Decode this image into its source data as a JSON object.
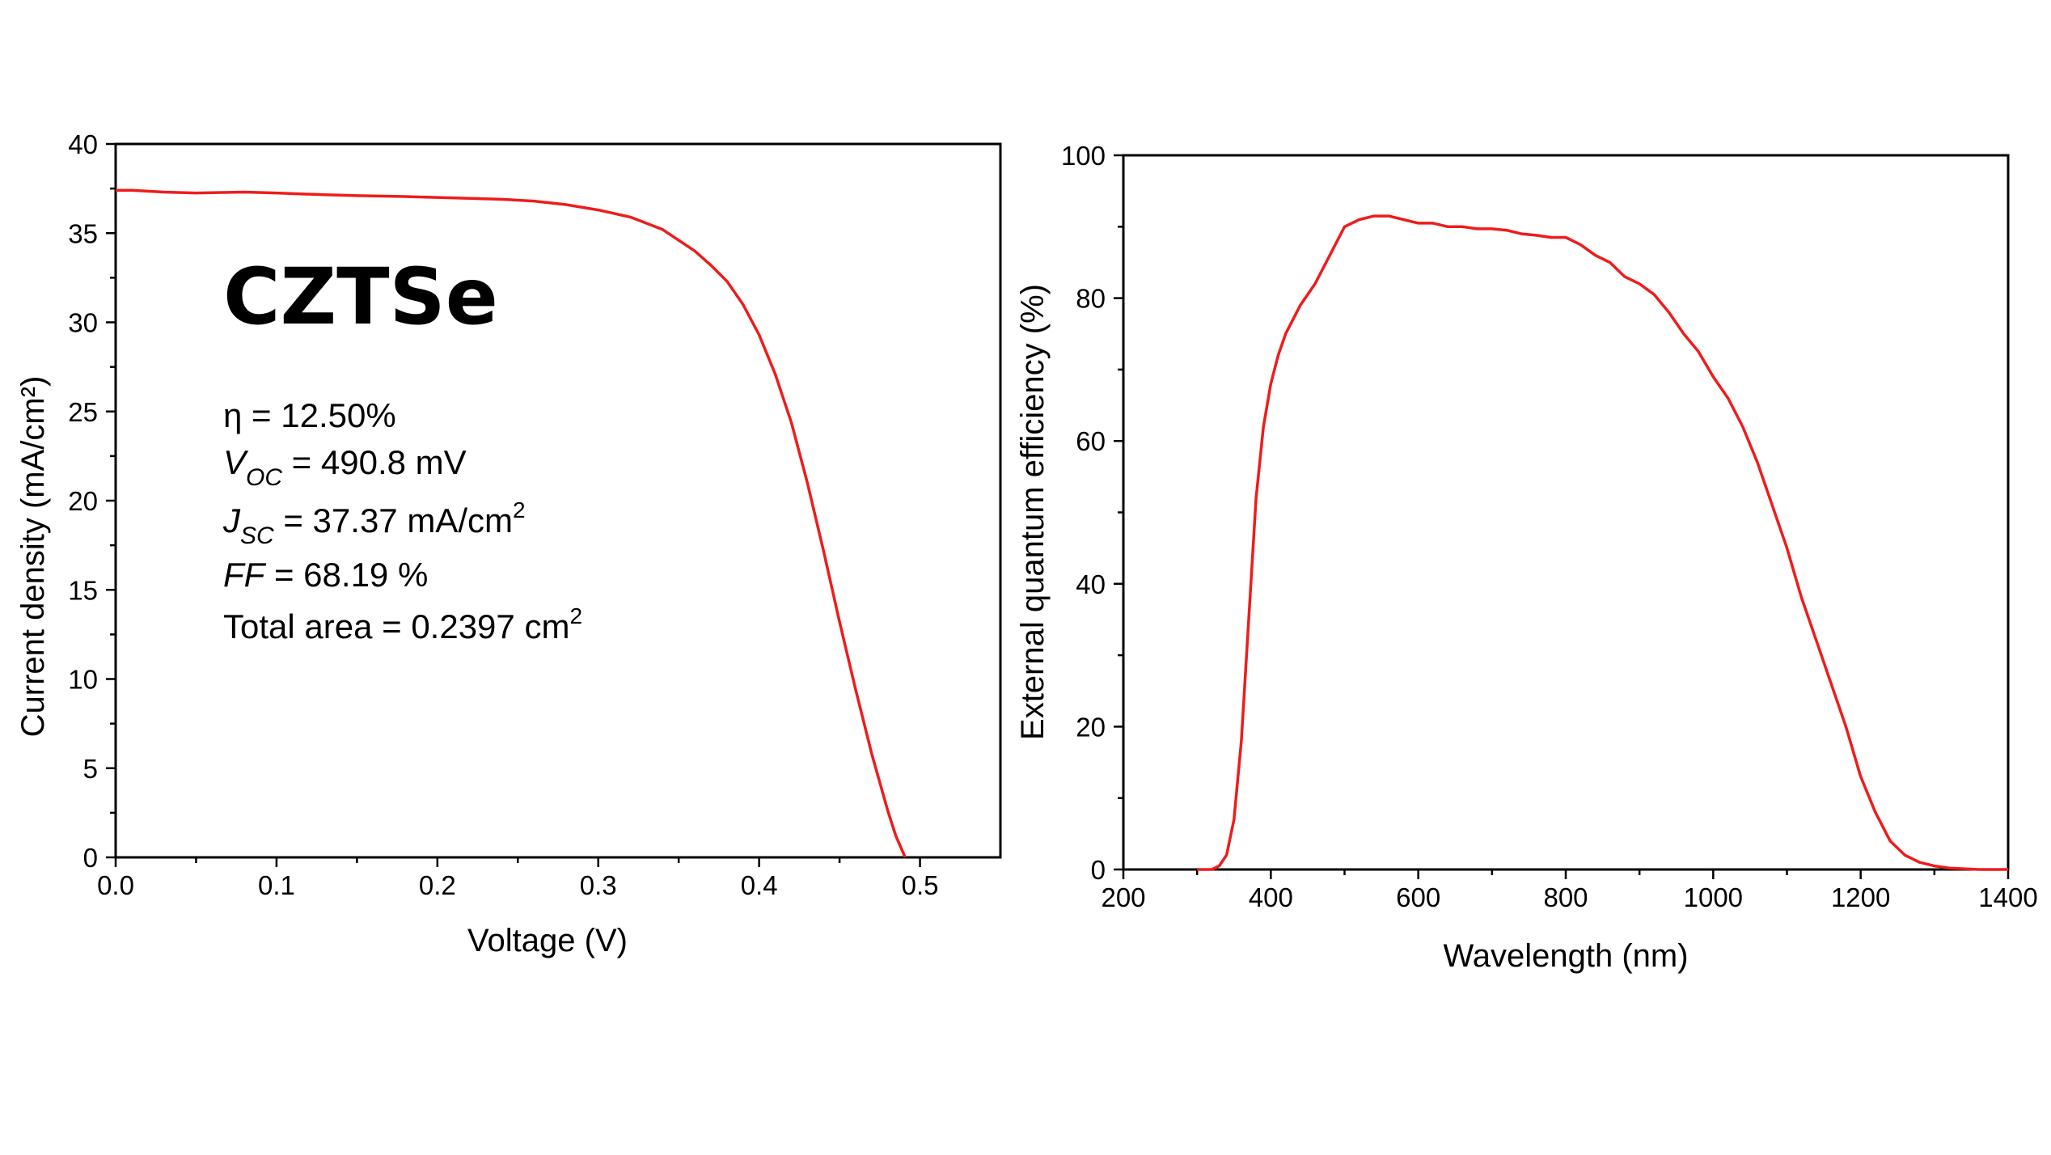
{
  "chart_data": [
    {
      "type": "line",
      "title": "CZTSe",
      "xlabel": "Voltage (V)",
      "ylabel": "Current density (mA/cm²)",
      "xlim": [
        0,
        0.55
      ],
      "ylim": [
        0,
        40
      ],
      "xticks": [
        "0.0",
        "0.1",
        "0.2",
        "0.3",
        "0.4",
        "0.5"
      ],
      "xtick_values": [
        0,
        0.1,
        0.2,
        0.3,
        0.4,
        0.5
      ],
      "yticks": [
        "0",
        "5",
        "10",
        "15",
        "20",
        "25",
        "30",
        "35",
        "40"
      ],
      "ytick_values": [
        0,
        5,
        10,
        15,
        20,
        25,
        30,
        35,
        40
      ],
      "grid": false,
      "series": [
        {
          "color": "#ee1c1c",
          "x": [
            0.0,
            0.01,
            0.03,
            0.05,
            0.08,
            0.1,
            0.13,
            0.15,
            0.18,
            0.2,
            0.22,
            0.24,
            0.26,
            0.28,
            0.3,
            0.32,
            0.34,
            0.35,
            0.36,
            0.37,
            0.38,
            0.39,
            0.4,
            0.41,
            0.42,
            0.43,
            0.44,
            0.45,
            0.46,
            0.47,
            0.48,
            0.485,
            0.4908
          ],
          "y": [
            37.4,
            37.4,
            37.3,
            37.25,
            37.3,
            37.25,
            37.15,
            37.1,
            37.05,
            37.0,
            36.95,
            36.9,
            36.8,
            36.6,
            36.3,
            35.9,
            35.2,
            34.6,
            34.0,
            33.2,
            32.3,
            31.0,
            29.3,
            27.1,
            24.4,
            21.0,
            17.2,
            13.2,
            9.4,
            5.8,
            2.6,
            1.2,
            0.0
          ]
        }
      ],
      "annotations": {
        "eta": "η = 12.50%",
        "voc_symbol": "V",
        "voc_sub": "OC",
        "voc_value": " = 490.8 mV",
        "jsc_symbol": "J",
        "jsc_sub": "SC",
        "jsc_value": " = 37.37 mA/cm",
        "jsc_sup": "2",
        "ff_symbol": "FF",
        "ff_value": " = 68.19 %",
        "area_value": "Total area = 0.2397 cm",
        "area_sup": "2"
      }
    },
    {
      "type": "line",
      "xlabel": "Wavelength (nm)",
      "ylabel": "External quantum efficiency (%)",
      "xlim": [
        200,
        1400
      ],
      "ylim": [
        0,
        100
      ],
      "xticks": [
        "200",
        "400",
        "600",
        "800",
        "1000",
        "1200",
        "1400"
      ],
      "xtick_values": [
        200,
        400,
        600,
        800,
        1000,
        1200,
        1400
      ],
      "yticks": [
        "0",
        "20",
        "40",
        "60",
        "80",
        "100"
      ],
      "ytick_values": [
        0,
        20,
        40,
        60,
        80,
        100
      ],
      "grid": false,
      "series": [
        {
          "color": "#ee1c1c",
          "x": [
            300,
            320,
            330,
            340,
            350,
            360,
            370,
            380,
            390,
            400,
            410,
            420,
            430,
            440,
            460,
            480,
            500,
            520,
            540,
            560,
            580,
            600,
            620,
            640,
            660,
            680,
            700,
            720,
            740,
            760,
            780,
            800,
            820,
            840,
            860,
            880,
            900,
            920,
            940,
            960,
            980,
            1000,
            1020,
            1040,
            1060,
            1080,
            1100,
            1120,
            1140,
            1160,
            1180,
            1200,
            1220,
            1240,
            1260,
            1280,
            1300,
            1320,
            1340,
            1360,
            1380,
            1400
          ],
          "y": [
            0,
            0,
            0.5,
            2,
            7,
            18,
            35,
            52,
            62,
            68,
            72,
            75,
            77,
            79,
            82,
            86,
            90,
            91,
            91.5,
            91.5,
            91,
            90.5,
            90.5,
            90,
            90,
            89.7,
            89.7,
            89.5,
            89,
            88.8,
            88.5,
            88.5,
            87.5,
            86,
            85,
            83,
            82,
            80.5,
            78,
            75,
            72.5,
            69,
            66,
            62,
            57,
            51,
            45,
            38,
            32,
            26,
            20,
            13,
            8,
            4,
            2,
            1,
            0.5,
            0.2,
            0.1,
            0,
            0,
            0
          ]
        }
      ]
    }
  ]
}
